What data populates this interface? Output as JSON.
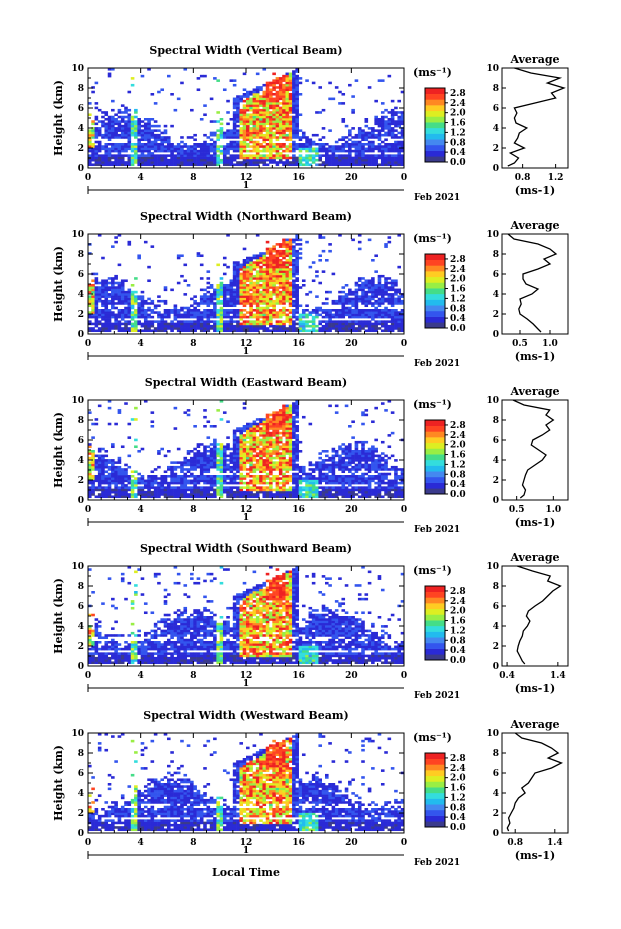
{
  "figure": {
    "xlabel": "Local Time",
    "ylabel": "Height (km)",
    "unit_label": "(ms⁻¹)",
    "avg_title": "Average",
    "avg_xlabel": "(ms⁻¹)",
    "day_marker": "1",
    "date_label": "Feb 2021",
    "colorbar_ticks": [
      "0.0",
      "0.4",
      "0.8",
      "1.2",
      "1.6",
      "2.0",
      "2.4",
      "2.8"
    ],
    "colorbar_range": [
      0.0,
      3.0
    ],
    "colorbar_colors": [
      "#3a3a8c",
      "#2a2ad6",
      "#3355ee",
      "#4488f0",
      "#22bbee",
      "#33dddd",
      "#44dd88",
      "#99ee44",
      "#ddee22",
      "#ffcc22",
      "#ff8822",
      "#ff4422",
      "#ee2222"
    ]
  },
  "chart_data": [
    {
      "type": "heatmap",
      "title": "Spectral Width (Vertical Beam)",
      "xlabel": "Local Time",
      "ylabel": "Height (km)",
      "xlim": [
        0,
        24
      ],
      "ylim": [
        0,
        10
      ],
      "x_ticks": [
        "0",
        "4",
        "8",
        "12",
        "16",
        "20",
        "0"
      ],
      "y_ticks": [
        "0",
        "2",
        "4",
        "6",
        "8",
        "10"
      ],
      "value_unit": "ms-1",
      "avg_profile": {
        "title": "Average",
        "xlabel": "(ms-1)",
        "x_ticks": [
          "0.8",
          "1.2"
        ],
        "xlim": [
          0.55,
          1.35
        ],
        "height": [
          0.2,
          0.5,
          1.0,
          1.5,
          2.0,
          2.5,
          3.0,
          3.5,
          4.0,
          4.5,
          5.0,
          5.5,
          6.0,
          6.5,
          7.0,
          7.5,
          8.0,
          8.5,
          9.0,
          9.5,
          10.0
        ],
        "value": [
          0.62,
          0.7,
          0.75,
          0.65,
          0.82,
          0.7,
          0.74,
          0.76,
          0.85,
          0.72,
          0.7,
          0.73,
          0.7,
          0.95,
          1.2,
          1.15,
          1.3,
          1.1,
          1.25,
          0.9,
          0.7
        ]
      }
    },
    {
      "type": "heatmap",
      "title": "Spectral Width (Northward Beam)",
      "xlabel": "Local Time",
      "ylabel": "Height (km)",
      "xlim": [
        0,
        24
      ],
      "ylim": [
        0,
        10
      ],
      "x_ticks": [
        "0",
        "4",
        "8",
        "12",
        "16",
        "20",
        "0"
      ],
      "y_ticks": [
        "0",
        "2",
        "4",
        "6",
        "8",
        "10"
      ],
      "value_unit": "ms-1",
      "avg_profile": {
        "title": "Average",
        "xlabel": "(ms-1)",
        "x_ticks": [
          "0.5",
          "1.0"
        ],
        "xlim": [
          0.2,
          1.3
        ],
        "height": [
          0.2,
          0.5,
          1.0,
          1.5,
          2.0,
          2.5,
          3.0,
          3.5,
          4.0,
          4.5,
          5.0,
          5.5,
          6.0,
          6.5,
          7.0,
          7.5,
          8.0,
          8.5,
          9.0,
          9.5,
          10.0
        ],
        "value": [
          0.85,
          0.8,
          0.72,
          0.62,
          0.5,
          0.48,
          0.52,
          0.5,
          0.7,
          0.8,
          0.6,
          0.55,
          0.55,
          0.8,
          1.0,
          0.9,
          1.1,
          1.0,
          0.8,
          0.4,
          0.3
        ]
      }
    },
    {
      "type": "heatmap",
      "title": "Spectral Width (Eastward Beam)",
      "xlabel": "Local Time",
      "ylabel": "Height (km)",
      "xlim": [
        0,
        24
      ],
      "ylim": [
        0,
        10
      ],
      "x_ticks": [
        "0",
        "4",
        "8",
        "12",
        "16",
        "20",
        "0"
      ],
      "y_ticks": [
        "0",
        "2",
        "4",
        "6",
        "8",
        "10"
      ],
      "value_unit": "ms-1",
      "avg_profile": {
        "title": "Average",
        "xlabel": "(ms-1)",
        "x_ticks": [
          "0.5",
          "1.0"
        ],
        "xlim": [
          0.3,
          1.2
        ],
        "height": [
          0.2,
          0.5,
          1.0,
          1.5,
          2.0,
          2.5,
          3.0,
          3.5,
          4.0,
          4.5,
          5.0,
          5.5,
          6.0,
          6.5,
          7.0,
          7.5,
          8.0,
          8.5,
          9.0,
          9.5,
          10.0
        ],
        "value": [
          0.55,
          0.6,
          0.62,
          0.58,
          0.6,
          0.62,
          0.65,
          0.75,
          0.85,
          0.9,
          0.8,
          0.7,
          0.72,
          0.85,
          0.95,
          0.9,
          1.0,
          0.9,
          0.95,
          0.6,
          0.45
        ]
      }
    },
    {
      "type": "heatmap",
      "title": "Spectral Width (Southward Beam)",
      "xlabel": "Local Time",
      "ylabel": "Height (km)",
      "xlim": [
        0,
        24
      ],
      "ylim": [
        0,
        10
      ],
      "x_ticks": [
        "0",
        "4",
        "8",
        "12",
        "16",
        "20",
        "0"
      ],
      "y_ticks": [
        "0",
        "2",
        "4",
        "6",
        "8",
        "10"
      ],
      "value_unit": "ms-1",
      "avg_profile": {
        "title": "Average",
        "xlabel": "(ms-1)",
        "x_ticks": [
          "0.4",
          "1.4"
        ],
        "xlim": [
          0.3,
          1.6
        ],
        "height": [
          0.2,
          0.5,
          1.0,
          1.5,
          2.0,
          2.5,
          3.0,
          3.5,
          4.0,
          4.5,
          5.0,
          5.5,
          6.0,
          6.5,
          7.0,
          7.5,
          8.0,
          8.5,
          9.0,
          9.5,
          10.0
        ],
        "value": [
          0.75,
          0.7,
          0.65,
          0.6,
          0.62,
          0.65,
          0.7,
          0.72,
          0.8,
          0.85,
          0.78,
          0.82,
          0.95,
          1.1,
          1.2,
          1.3,
          1.45,
          1.2,
          1.25,
          0.9,
          0.6
        ]
      }
    },
    {
      "type": "heatmap",
      "title": "Spectral Width (Westward Beam)",
      "xlabel": "Local Time",
      "ylabel": "Height (km)",
      "xlim": [
        0,
        24
      ],
      "ylim": [
        0,
        10
      ],
      "x_ticks": [
        "0",
        "4",
        "8",
        "12",
        "16",
        "20",
        "0"
      ],
      "y_ticks": [
        "0",
        "2",
        "4",
        "6",
        "8",
        "10"
      ],
      "value_unit": "ms-1",
      "avg_profile": {
        "title": "Average",
        "xlabel": "(ms-1)",
        "x_ticks": [
          "0.8",
          "1.4"
        ],
        "xlim": [
          0.6,
          1.6
        ],
        "height": [
          0.2,
          0.5,
          1.0,
          1.5,
          2.0,
          2.5,
          3.0,
          3.5,
          4.0,
          4.5,
          5.0,
          5.5,
          6.0,
          6.5,
          7.0,
          7.5,
          8.0,
          8.5,
          9.0,
          9.5,
          10.0
        ],
        "value": [
          0.7,
          0.68,
          0.72,
          0.7,
          0.74,
          0.78,
          0.8,
          0.85,
          0.95,
          0.9,
          1.0,
          1.05,
          1.1,
          1.35,
          1.5,
          1.3,
          1.45,
          1.35,
          1.2,
          0.9,
          0.8
        ]
      }
    }
  ]
}
